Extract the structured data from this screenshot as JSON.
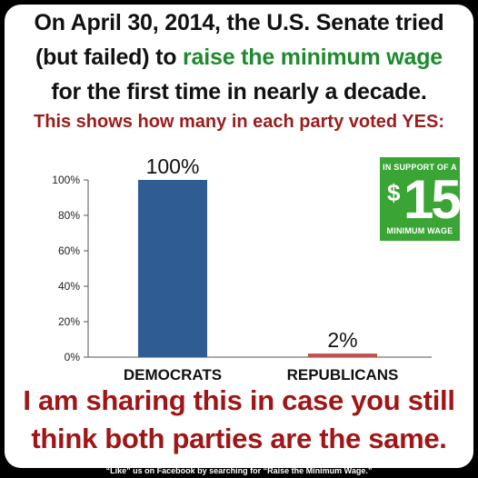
{
  "headline": {
    "line1": "On April 30, 2014, the U.S. Senate tried",
    "line2_prefix": "(but failed) to ",
    "line2_highlight": "raise the minimum wage",
    "line3": "for the first time in nearly a decade."
  },
  "subheadline": "This shows how many in each party voted YES:",
  "badge": {
    "top_text": "IN SUPPORT OF A",
    "dollar": "$",
    "amount": "15",
    "bottom_text": "MINIMUM WAGE"
  },
  "closing": {
    "line1": "I am sharing this in case you still",
    "line2": "think both parties are the same."
  },
  "footer": "“Like” us on Facebook by searching for “Raise the Minimum Wage.”",
  "colors": {
    "democrat_bar": "#2e5c93",
    "republican_bar": "#c0504d",
    "highlight_green": "#1e8a2e",
    "headline_red": "#9b1c1c"
  },
  "chart_data": {
    "type": "bar",
    "categories": [
      "DEMOCRATS",
      "REPUBLICANS"
    ],
    "values": [
      100,
      2
    ],
    "data_labels": [
      "100%",
      "2%"
    ],
    "ylim": [
      0,
      100
    ],
    "yticks": [
      "0%",
      "20%",
      "40%",
      "60%",
      "80%",
      "100%"
    ],
    "grid": false
  }
}
